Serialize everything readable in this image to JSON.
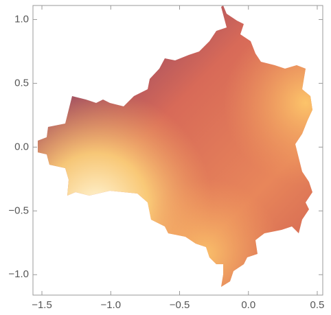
{
  "chart_data": {
    "type": "region",
    "xlim": [
      -1.565,
      0.54
    ],
    "ylim": [
      -1.16,
      1.11
    ],
    "xticks": [
      {
        "value": -1.5,
        "label": "−1.5"
      },
      {
        "value": -1.0,
        "label": "−1.0"
      },
      {
        "value": -0.5,
        "label": "−0.5"
      },
      {
        "value": 0.0,
        "label": "0.0"
      },
      0.5
    ],
    "yticks": [
      {
        "value": -1.0,
        "label": "−1.0"
      },
      {
        "value": -0.5,
        "label": "−0.5"
      },
      {
        "value": 0.0,
        "label": "0.0"
      },
      0.5,
      {
        "value": 1.0,
        "label": "1.0"
      }
    ],
    "frame": true
  }
}
